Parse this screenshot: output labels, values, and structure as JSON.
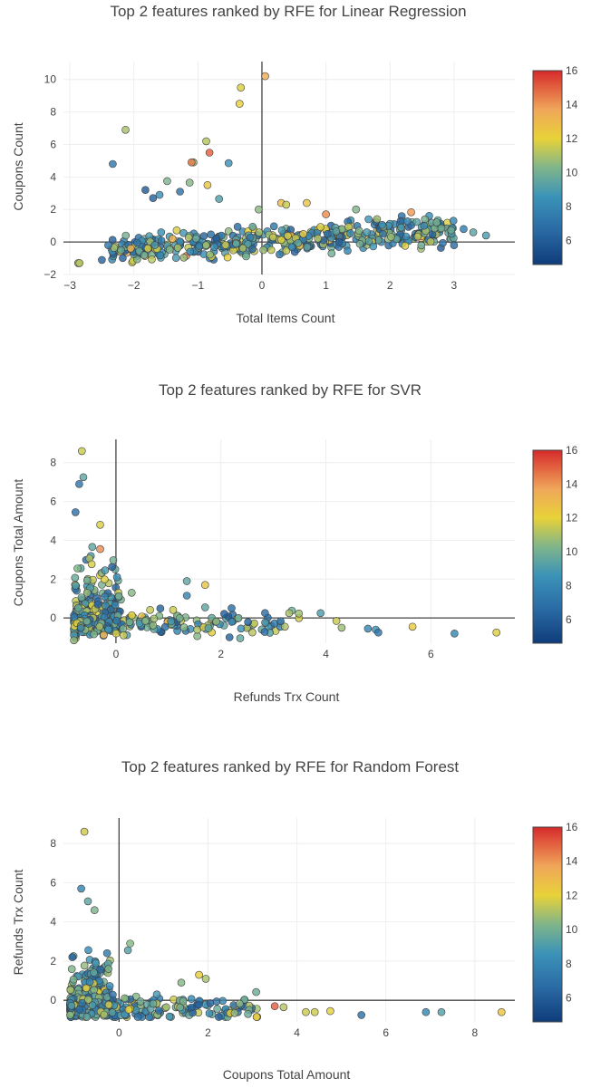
{
  "colorscale": {
    "stops": [
      [
        0.0,
        "#0f3c7a"
      ],
      [
        0.18,
        "#2a6ba5"
      ],
      [
        0.35,
        "#3b93b8"
      ],
      [
        0.5,
        "#7fb58a"
      ],
      [
        0.65,
        "#e8d239"
      ],
      [
        0.8,
        "#f0a65a"
      ],
      [
        1.0,
        "#d62a2a"
      ]
    ],
    "min": 4.6,
    "max": 16
  },
  "chart_data": [
    {
      "type": "scatter",
      "title": "Top 2 features ranked by RFE for Linear Regression",
      "xlabel": "Total Items Count",
      "ylabel": "Coupons Count",
      "xlim": [
        -3.1,
        3.95
      ],
      "ylim": [
        -2,
        11.1
      ],
      "xticks": [
        -3,
        -2,
        -1,
        0,
        1,
        2,
        3
      ],
      "yticks": [
        -2,
        0,
        2,
        4,
        6,
        8,
        10
      ],
      "colorbar_ticks": [
        6,
        8,
        10,
        12,
        14,
        16
      ],
      "outliers": [
        {
          "x": 0.05,
          "y": 10.2,
          "c": 13.5
        },
        {
          "x": -0.33,
          "y": 9.5,
          "c": 11.8
        },
        {
          "x": -0.35,
          "y": 8.5,
          "c": 12.0
        },
        {
          "x": -2.13,
          "y": 6.9,
          "c": 11.0
        },
        {
          "x": -0.87,
          "y": 6.2,
          "c": 11.2
        },
        {
          "x": -0.82,
          "y": 5.5,
          "c": 15.0
        },
        {
          "x": -0.52,
          "y": 4.85,
          "c": 8.6
        },
        {
          "x": -2.33,
          "y": 4.8,
          "c": 7.3
        },
        {
          "x": -1.07,
          "y": 4.9,
          "c": 10.6
        },
        {
          "x": -1.1,
          "y": 4.9,
          "c": 14.5
        },
        {
          "x": -1.48,
          "y": 3.75,
          "c": 10.2
        },
        {
          "x": -1.28,
          "y": 3.1,
          "c": 7.0
        },
        {
          "x": -1.82,
          "y": 3.2,
          "c": 6.0
        },
        {
          "x": -1.13,
          "y": 3.65,
          "c": 10.4
        },
        {
          "x": -0.85,
          "y": 3.5,
          "c": 12.5
        },
        {
          "x": -0.67,
          "y": 2.65,
          "c": 9.2
        },
        {
          "x": -1.6,
          "y": 2.9,
          "c": 8.4
        },
        {
          "x": -1.7,
          "y": 2.7,
          "c": 6.2
        },
        {
          "x": -0.05,
          "y": 2.0,
          "c": 10.5
        },
        {
          "x": 0.3,
          "y": 2.4,
          "c": 12.8
        },
        {
          "x": 0.38,
          "y": 2.3,
          "c": 11.5
        },
        {
          "x": 0.7,
          "y": 2.4,
          "c": 12.6
        },
        {
          "x": 1.0,
          "y": 1.7,
          "c": 14.2
        },
        {
          "x": 1.47,
          "y": 2.0,
          "c": 10.3
        },
        {
          "x": 2.73,
          "y": 1.2,
          "c": 10.1
        },
        {
          "x": 3.5,
          "y": 0.4,
          "c": 9.0
        },
        {
          "x": 3.3,
          "y": 0.6,
          "c": 9.4
        },
        {
          "x": 3.15,
          "y": 0.8,
          "c": 7.5
        },
        {
          "x": -2.87,
          "y": -1.3,
          "c": 10.8
        },
        {
          "x": -2.85,
          "y": -1.3,
          "c": 11.2
        },
        {
          "x": -2.5,
          "y": -1.1,
          "c": 6.4
        },
        {
          "x": -2.4,
          "y": -0.2,
          "c": 7.2
        },
        {
          "x": -2.2,
          "y": -0.5,
          "c": 9.6
        },
        {
          "x": -2.05,
          "y": -0.4,
          "c": 13.2
        },
        {
          "x": 3.0,
          "y": -0.2,
          "c": 6.8
        }
      ],
      "cloud": {
        "x0": -2.35,
        "x1": 3.0,
        "center_y": 0.05,
        "spread_y": 0.45,
        "slope": 0.22,
        "count": 460,
        "seed": 11
      }
    },
    {
      "type": "scatter",
      "title": "Top 2 features ranked by RFE for SVR",
      "xlabel": "Refunds Trx Count",
      "ylabel": "Coupons Total Amount",
      "xlim": [
        -1.0,
        7.6
      ],
      "ylim": [
        -1.3,
        9.2
      ],
      "xticks": [
        0,
        2,
        4,
        6
      ],
      "yticks": [
        0,
        2,
        4,
        6,
        8
      ],
      "colorbar_ticks": [
        6,
        8,
        10,
        12,
        14,
        16
      ],
      "outliers": [
        {
          "x": -0.65,
          "y": 8.6,
          "c": 11.5
        },
        {
          "x": -0.62,
          "y": 7.25,
          "c": 9.5
        },
        {
          "x": -0.7,
          "y": 6.9,
          "c": 7.2
        },
        {
          "x": -0.77,
          "y": 5.45,
          "c": 7.0
        },
        {
          "x": -0.3,
          "y": 4.8,
          "c": 11.8
        },
        {
          "x": -0.3,
          "y": 3.55,
          "c": 14.2
        },
        {
          "x": 1.35,
          "y": 1.9,
          "c": 9.5
        },
        {
          "x": 1.7,
          "y": 1.7,
          "c": 12.6
        },
        {
          "x": 1.35,
          "y": 1.15,
          "c": 7.8
        },
        {
          "x": 1.7,
          "y": 0.55,
          "c": 9.4
        },
        {
          "x": 3.3,
          "y": 0.25,
          "c": 11.0
        },
        {
          "x": 3.9,
          "y": 0.25,
          "c": 9.0
        },
        {
          "x": 4.2,
          "y": -0.15,
          "c": 11.5
        },
        {
          "x": 4.3,
          "y": -0.5,
          "c": 10.8
        },
        {
          "x": 4.8,
          "y": -0.55,
          "c": 8.0
        },
        {
          "x": 4.95,
          "y": -0.6,
          "c": 8.6
        },
        {
          "x": 5.0,
          "y": -0.75,
          "c": 7.2
        },
        {
          "x": 5.65,
          "y": -0.45,
          "c": 12.2
        },
        {
          "x": 6.45,
          "y": -0.8,
          "c": 8.0
        },
        {
          "x": 7.25,
          "y": -0.75,
          "c": 11.8
        },
        {
          "x": 0.02,
          "y": 2.1,
          "c": 8.4
        },
        {
          "x": 0.3,
          "y": 1.3,
          "c": 10.4
        },
        {
          "x": -0.8,
          "y": -1.15,
          "c": 10.6
        }
      ],
      "cloud": {
        "x0": -0.8,
        "x1": 3.5,
        "center_y": -0.3,
        "spread_y": 0.35,
        "slope": 0.0,
        "count": 430,
        "seed": 23,
        "left_column": true
      }
    },
    {
      "type": "scatter",
      "title": "Top 2 features ranked by RFE for Random Forest",
      "xlabel": "Coupons Total Amount",
      "ylabel": "Refunds Trx Count",
      "xlim": [
        -1.25,
        8.9
      ],
      "ylim": [
        -1.1,
        9.3
      ],
      "xticks": [
        0,
        2,
        4,
        6,
        8
      ],
      "yticks": [
        0,
        2,
        4,
        6,
        8
      ],
      "colorbar_ticks": [
        6,
        8,
        10,
        12,
        14,
        16
      ],
      "outliers": [
        {
          "x": -0.78,
          "y": 8.6,
          "c": 11.6
        },
        {
          "x": -0.85,
          "y": 5.7,
          "c": 7.8
        },
        {
          "x": -0.7,
          "y": 5.05,
          "c": 9.4
        },
        {
          "x": -0.55,
          "y": 4.6,
          "c": 10.2
        },
        {
          "x": 0.25,
          "y": 2.9,
          "c": 10.4
        },
        {
          "x": 0.2,
          "y": 2.55,
          "c": 9.2
        },
        {
          "x": 1.8,
          "y": 1.3,
          "c": 12.2
        },
        {
          "x": 1.95,
          "y": 1.1,
          "c": 11.0
        },
        {
          "x": 1.4,
          "y": 0.9,
          "c": 10.4
        },
        {
          "x": 3.5,
          "y": -0.3,
          "c": 15.0
        },
        {
          "x": 3.7,
          "y": -0.35,
          "c": 11.2
        },
        {
          "x": 4.2,
          "y": -0.6,
          "c": 11.5
        },
        {
          "x": 4.4,
          "y": -0.6,
          "c": 11.6
        },
        {
          "x": 4.75,
          "y": -0.55,
          "c": 12.0
        },
        {
          "x": 5.45,
          "y": -0.75,
          "c": 7.0
        },
        {
          "x": 6.9,
          "y": -0.6,
          "c": 8.0
        },
        {
          "x": 7.25,
          "y": -0.6,
          "c": 9.2
        },
        {
          "x": 8.6,
          "y": -0.6,
          "c": 12.5
        },
        {
          "x": 2.9,
          "y": -0.7,
          "c": 9.8
        },
        {
          "x": 2.6,
          "y": -0.65,
          "c": 10.6
        },
        {
          "x": -1.1,
          "y": -0.75,
          "c": 10.4
        },
        {
          "x": -1.05,
          "y": 2.2,
          "c": 6.2
        },
        {
          "x": 0.85,
          "y": 0.3,
          "c": 8.8
        }
      ],
      "cloud": {
        "x0": -1.1,
        "x1": 3.2,
        "center_y": -0.4,
        "spread_y": 0.3,
        "slope": 0.0,
        "count": 430,
        "seed": 37,
        "left_column": true
      }
    }
  ]
}
